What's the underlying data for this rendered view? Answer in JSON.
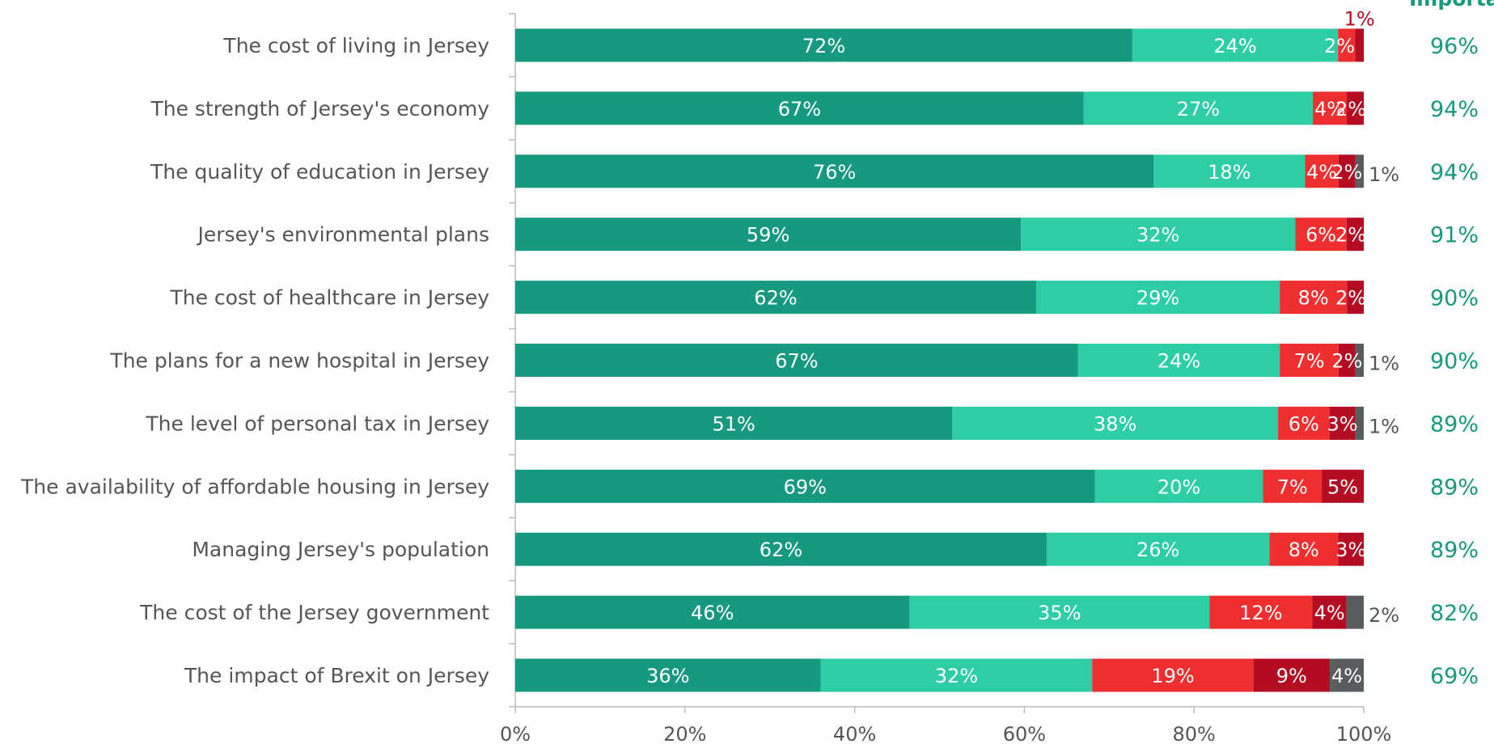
{
  "chart_data": {
    "type": "bar",
    "orientation": "horizontal",
    "stacked": true,
    "categories": [
      "The cost of living in Jersey",
      "The strength of Jersey's economy",
      "The quality of education in Jersey",
      "Jersey's environmental plans",
      "The cost of healthcare in Jersey",
      "The plans for a new hospital in Jersey",
      "The level of personal tax in Jersey",
      "The availability of affordable housing in Jersey",
      "Managing Jersey's population",
      "The cost of the Jersey government",
      "The impact of Brexit on Jersey"
    ],
    "series": [
      {
        "color": "#16997e",
        "values": [
          72,
          67,
          76,
          59,
          62,
          67,
          51,
          69,
          62,
          46,
          36
        ],
        "labels": [
          "72%",
          "67%",
          "76%",
          "59%",
          "62%",
          "67%",
          "51%",
          "69%",
          "62%",
          "46%",
          "36%"
        ]
      },
      {
        "color": "#2dcea6",
        "values": [
          24,
          27,
          18,
          32,
          29,
          24,
          38,
          20,
          26,
          35,
          32
        ],
        "labels": [
          "24%",
          "27%",
          "18%",
          "32%",
          "29%",
          "24%",
          "38%",
          "20%",
          "26%",
          "35%",
          "32%"
        ]
      },
      {
        "color": "#ef2f2f",
        "values": [
          2,
          4,
          4,
          6,
          8,
          7,
          6,
          7,
          8,
          12,
          19
        ],
        "labels": [
          "2%",
          "4%",
          "4%",
          "6%",
          "8%",
          "7%",
          "6%",
          "7%",
          "8%",
          "12%",
          "19%"
        ]
      },
      {
        "color": "#b30c23",
        "values": [
          1,
          2,
          2,
          2,
          2,
          2,
          3,
          5,
          3,
          4,
          9
        ],
        "labels": [
          "1%",
          "2%",
          "2%",
          "2%",
          "2%",
          "2%",
          "3%",
          "5%",
          "3%",
          "4%",
          "9%"
        ]
      },
      {
        "color": "#5a5d5f",
        "values": [
          0,
          0,
          1,
          0,
          0,
          1,
          1,
          0,
          0,
          2,
          4
        ],
        "labels": [
          "",
          "",
          "1%",
          "",
          "",
          "1%",
          "1%",
          "",
          "",
          "2%",
          "4%"
        ]
      }
    ],
    "important_header": "Importa",
    "important_values": [
      "96%",
      "94%",
      "94%",
      "91%",
      "90%",
      "90%",
      "89%",
      "89%",
      "89%",
      "82%",
      "69%"
    ],
    "xlim": [
      0,
      100
    ],
    "x_ticks": [
      "0%",
      "20%",
      "40%",
      "60%",
      "80%",
      "100%"
    ],
    "colors": {
      "label_text": "#555555",
      "axis": "#bbbbbb",
      "important": "#16997e",
      "outside_dark_red": "#b30c23",
      "outside_grey": "#555555"
    }
  }
}
